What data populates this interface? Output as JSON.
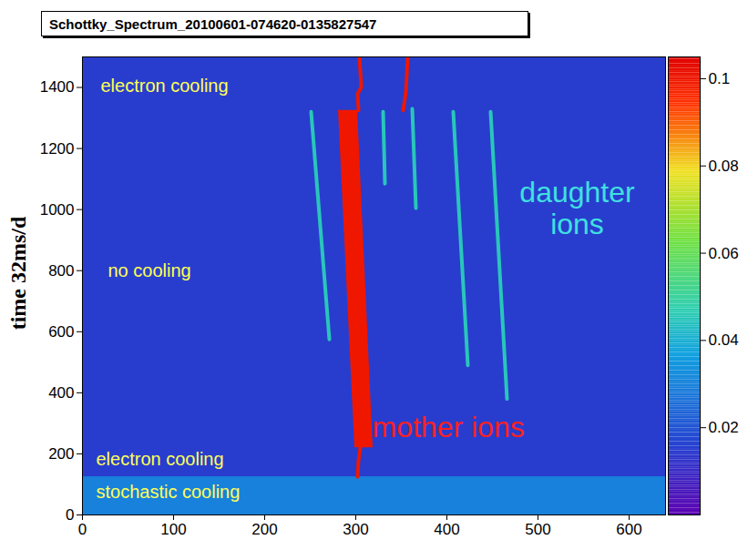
{
  "chart_data": {
    "type": "heatmap",
    "title": "Schottky_Spectrum_20100601-074620-0135827547",
    "y_label": "time 32ms/d",
    "xlim": [
      0,
      640
    ],
    "xticks": [
      0,
      100,
      200,
      300,
      400,
      500,
      600
    ],
    "ylim": [
      0,
      1500
    ],
    "yticks": [
      0,
      200,
      400,
      600,
      800,
      1000,
      1200,
      1400
    ],
    "colorbar": {
      "range": [
        0,
        0.105
      ],
      "ticks": [
        0.02,
        0.04,
        0.06,
        0.08,
        0.1
      ]
    },
    "background": 0.015,
    "regions": [
      {
        "x": [
          0,
          640
        ],
        "y": [
          0,
          125
        ],
        "value": 0.03
      }
    ],
    "bands": [
      {
        "y": [
          220,
          1325
        ],
        "x1": [
          299,
          281
        ],
        "x2": [
          319,
          302
        ],
        "value": 0.1
      }
    ],
    "traces": [
      {
        "x": [
          302,
          303,
          305
        ],
        "y": [
          125,
          180,
          220
        ],
        "value": 0.1
      },
      {
        "x": [
          303,
          302,
          306,
          304
        ],
        "y": [
          1325,
          1380,
          1400,
          1500
        ],
        "value": 0.1
      },
      {
        "x": [
          352,
          355,
          357
        ],
        "y": [
          1325,
          1385,
          1500
        ],
        "value": 0.1
      },
      {
        "x": [
          251,
          271
        ],
        "y": [
          1320,
          575
        ],
        "value": 0.045
      },
      {
        "x": [
          330,
          332
        ],
        "y": [
          1320,
          1085
        ],
        "value": 0.045
      },
      {
        "x": [
          362,
          366
        ],
        "y": [
          1330,
          1005
        ],
        "value": 0.045
      },
      {
        "x": [
          407,
          423
        ],
        "y": [
          1320,
          490
        ],
        "value": 0.045
      },
      {
        "x": [
          448,
          466
        ],
        "y": [
          1320,
          380
        ],
        "value": 0.045
      }
    ],
    "annotations": [
      {
        "text": "electron cooling",
        "color": "#ffff55"
      },
      {
        "text": "no cooling",
        "color": "#ffff55"
      },
      {
        "text": "electron cooling",
        "color": "#ffff55"
      },
      {
        "text": "stochastic cooling",
        "color": "#ffff55"
      },
      {
        "text": "mother ions",
        "color": "#ff2020"
      },
      {
        "text": "daughter ions",
        "color": "#40e0e0"
      }
    ]
  }
}
